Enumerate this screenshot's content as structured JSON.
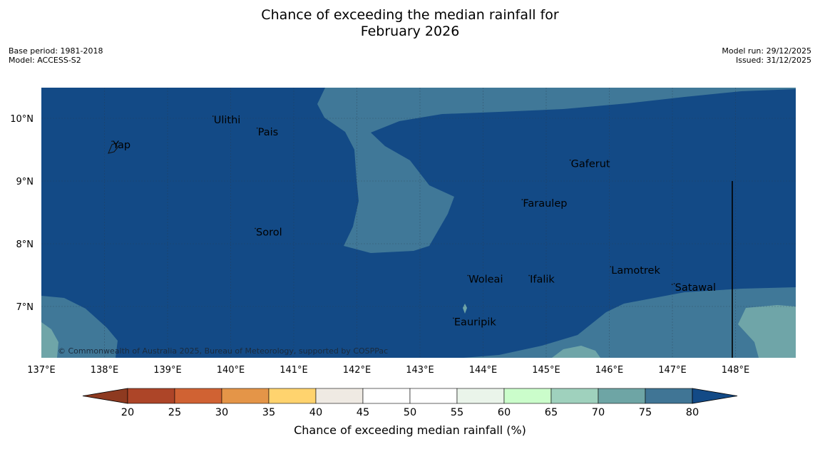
{
  "header": {
    "title_line1": "Chance of exceeding the median rainfall for",
    "title_line2": "February 2026",
    "base_period": "Base period: 1981-2018",
    "model": "Model: ACCESS-S2",
    "model_run": "Model run: 29/12/2025",
    "issued": "Issued: 31/12/2025"
  },
  "map": {
    "lon_labels": [
      "137°E",
      "138°E",
      "139°E",
      "140°E",
      "141°E",
      "142°E",
      "143°E",
      "144°E",
      "145°E",
      "146°E",
      "147°E",
      "148°E"
    ],
    "lat_labels": [
      "10°N",
      "9°N",
      "8°N",
      "7°N"
    ],
    "places": [
      {
        "name": "Yap",
        "lon": 138.12,
        "lat": 9.52
      },
      {
        "name": "Ulithi",
        "lon": 139.72,
        "lat": 9.92
      },
      {
        "name": "Pais",
        "lon": 140.42,
        "lat": 9.73
      },
      {
        "name": "Gaferut",
        "lon": 145.38,
        "lat": 9.22
      },
      {
        "name": "Faraulep",
        "lon": 144.62,
        "lat": 8.59
      },
      {
        "name": "Sorol",
        "lon": 140.39,
        "lat": 8.13
      },
      {
        "name": "Lamotrek",
        "lon": 146.02,
        "lat": 7.52
      },
      {
        "name": "Woleai",
        "lon": 143.76,
        "lat": 7.38
      },
      {
        "name": "Ifalik",
        "lon": 144.73,
        "lat": 7.38
      },
      {
        "name": "Satawal",
        "lon": 147.03,
        "lat": 7.25
      },
      {
        "name": "Eauripik",
        "lon": 143.53,
        "lat": 6.7
      }
    ],
    "copyright": "© Commonwealth of Australia 2025, Bureau of Meteorology, supported by COSPPac"
  },
  "colorbar": {
    "label": "Chance of exceeding median rainfall (%)",
    "ticks": [
      "20",
      "25",
      "30",
      "35",
      "40",
      "45",
      "50",
      "55",
      "60",
      "65",
      "70",
      "75",
      "80"
    ],
    "colors": [
      "#ad4528",
      "#d06233",
      "#e49548",
      "#ffd36e",
      "#efeae3",
      "#ffffff",
      "#ffffff",
      "#eaf4ea",
      "#cbfdcb",
      "#9fd1bd",
      "#6ea5a5",
      "#407595"
    ],
    "under_color": "#8e3a20",
    "over_color": "#134a86"
  },
  "colors": {
    "c80": "#134a86",
    "c75": "#407898",
    "c70": "#6fa5a8",
    "c65": "#a0d3be"
  }
}
